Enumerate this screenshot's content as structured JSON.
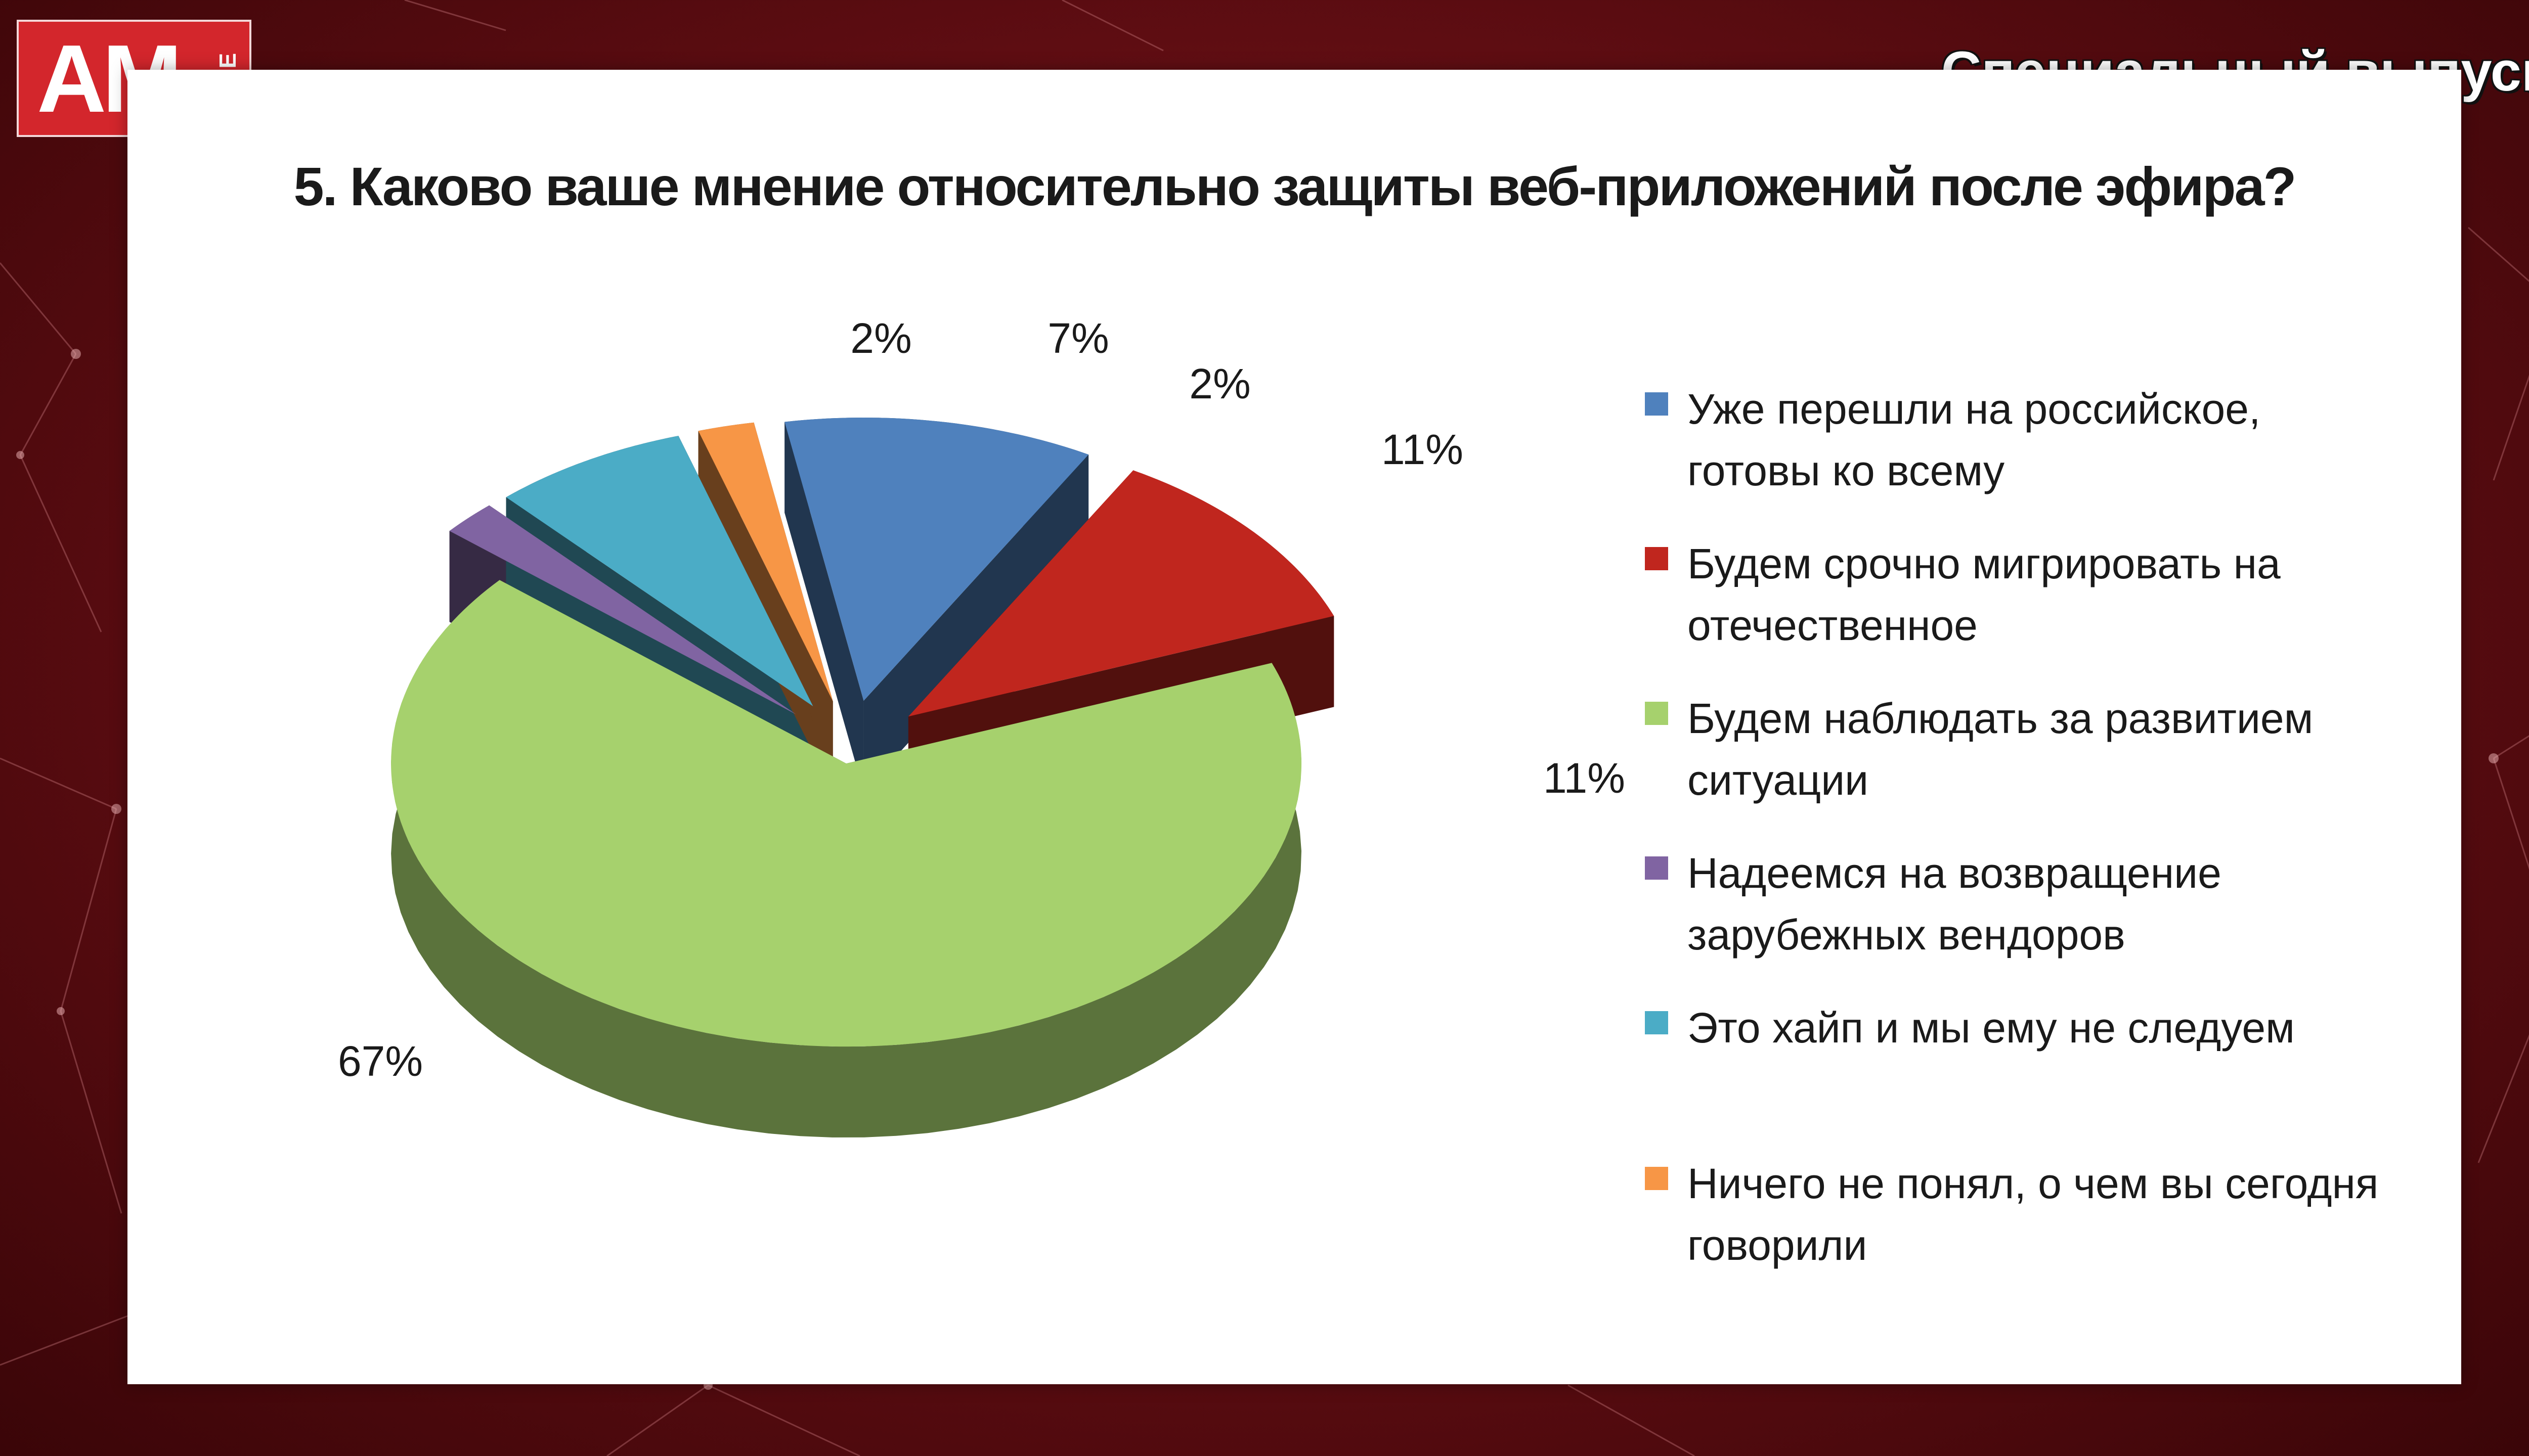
{
  "header": {
    "logo_text": "AM",
    "logo_sub": "LIVE",
    "broadcast_label": "Специальный выпуск"
  },
  "slide": {
    "question": "5.  Каково ваше мнение относительно защиты веб-приложений  после эфира?"
  },
  "chart_data": {
    "type": "pie",
    "title": "5.  Каково ваше мнение относительно защиты веб-приложений  после эфира?",
    "unit": "%",
    "legend_position": "right",
    "slices": [
      {
        "name": "Уже перешли на российское, готовы ко всему",
        "value": 11,
        "label": "11%",
        "color": "#4f81bd"
      },
      {
        "name": "Будем срочно мигрировать на отечественное",
        "value": 11,
        "label": "11%",
        "color": "#c0261e"
      },
      {
        "name": "Будем наблюдать за развитием ситуации",
        "value": 67,
        "label": "67%",
        "color": "#a6d16d"
      },
      {
        "name": "Надеемся на возвращение зарубежных вендоров",
        "value": 2,
        "label": "2%",
        "color": "#8064a2"
      },
      {
        "name": "Это хайп и мы ему не следуем",
        "value": 7,
        "label": "7%",
        "color": "#4bacc6"
      },
      {
        "name": "Ничего не понял, о чем вы сегодня говорили",
        "value": 2,
        "label": "2%",
        "color": "#f79646"
      }
    ]
  }
}
